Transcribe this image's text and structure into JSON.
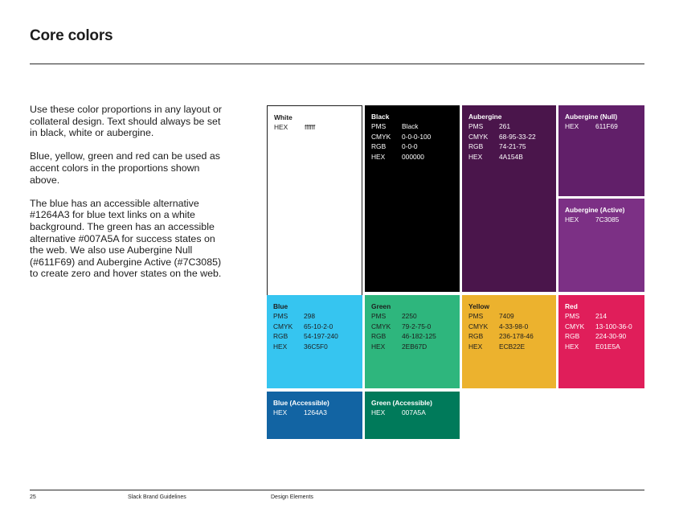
{
  "page": {
    "title": "Core colors"
  },
  "body": {
    "paragraphs": [
      "Use these color proportions in any layout or collateral design. Text should always be set in black, white or aubergine.",
      "Blue, yellow, green and red can be used as accent colors in the proportions shown above.",
      "The blue has an accessible alternative #1264A3 for blue text links on a white background. The green has an accessible alternative #007A5A for success states on the web. We also use Aubergine Null (#611F69) and Aubergine Active (#7C3085) to create zero and hover states on the web."
    ]
  },
  "swatches": {
    "white": {
      "name": "White",
      "color": "#ffffff",
      "rows": [
        {
          "k": "HEX",
          "v": "ffffff"
        }
      ]
    },
    "black": {
      "name": "Black",
      "color": "#000000",
      "rows": [
        {
          "k": "PMS",
          "v": "Black"
        },
        {
          "k": "CMYK",
          "v": "0-0-0-100"
        },
        {
          "k": "RGB",
          "v": "0-0-0"
        },
        {
          "k": "HEX",
          "v": "000000"
        }
      ]
    },
    "aubergine": {
      "name": "Aubergine",
      "color": "#4A154B",
      "rows": [
        {
          "k": "PMS",
          "v": "261"
        },
        {
          "k": "CMYK",
          "v": "68-95-33-22"
        },
        {
          "k": "RGB",
          "v": "74-21-75"
        },
        {
          "k": "HEX",
          "v": "4A154B"
        }
      ]
    },
    "aubergine_null": {
      "name": "Aubergine (Null)",
      "color": "#611F69",
      "rows": [
        {
          "k": "HEX",
          "v": "611F69"
        }
      ]
    },
    "aubergine_active": {
      "name": "Aubergine (Active)",
      "color": "#7C3085",
      "rows": [
        {
          "k": "HEX",
          "v": "7C3085"
        }
      ]
    },
    "blue": {
      "name": "Blue",
      "color": "#36C5F0",
      "rows": [
        {
          "k": "PMS",
          "v": "298"
        },
        {
          "k": "CMYK",
          "v": "65-10-2-0"
        },
        {
          "k": "RGB",
          "v": "54-197-240"
        },
        {
          "k": "HEX",
          "v": "36C5F0"
        }
      ]
    },
    "green": {
      "name": "Green",
      "color": "#2EB67D",
      "rows": [
        {
          "k": "PMS",
          "v": "2250"
        },
        {
          "k": "CMYK",
          "v": "79-2-75-0"
        },
        {
          "k": "RGB",
          "v": "46-182-125"
        },
        {
          "k": "HEX",
          "v": "2EB67D"
        }
      ]
    },
    "yellow": {
      "name": "Yellow",
      "color": "#ECB22E",
      "rows": [
        {
          "k": "PMS",
          "v": "7409"
        },
        {
          "k": "CMYK",
          "v": "4-33-98-0"
        },
        {
          "k": "RGB",
          "v": "236-178-46"
        },
        {
          "k": "HEX",
          "v": "ECB22E"
        }
      ]
    },
    "red": {
      "name": "Red",
      "color": "#E01E5A",
      "rows": [
        {
          "k": "PMS",
          "v": "214"
        },
        {
          "k": "CMYK",
          "v": "13-100-36-0"
        },
        {
          "k": "RGB",
          "v": "224-30-90"
        },
        {
          "k": "HEX",
          "v": "E01E5A"
        }
      ]
    },
    "blue_accessible": {
      "name": "Blue (Accessible)",
      "color": "#1264A3",
      "rows": [
        {
          "k": "HEX",
          "v": "1264A3"
        }
      ]
    },
    "green_accessible": {
      "name": "Green (Accessible)",
      "color": "#007A5A",
      "rows": [
        {
          "k": "HEX",
          "v": "007A5A"
        }
      ]
    }
  },
  "footer": {
    "page_number": "25",
    "doc_title": "Slack Brand Guidelines",
    "section": "Design Elements"
  }
}
